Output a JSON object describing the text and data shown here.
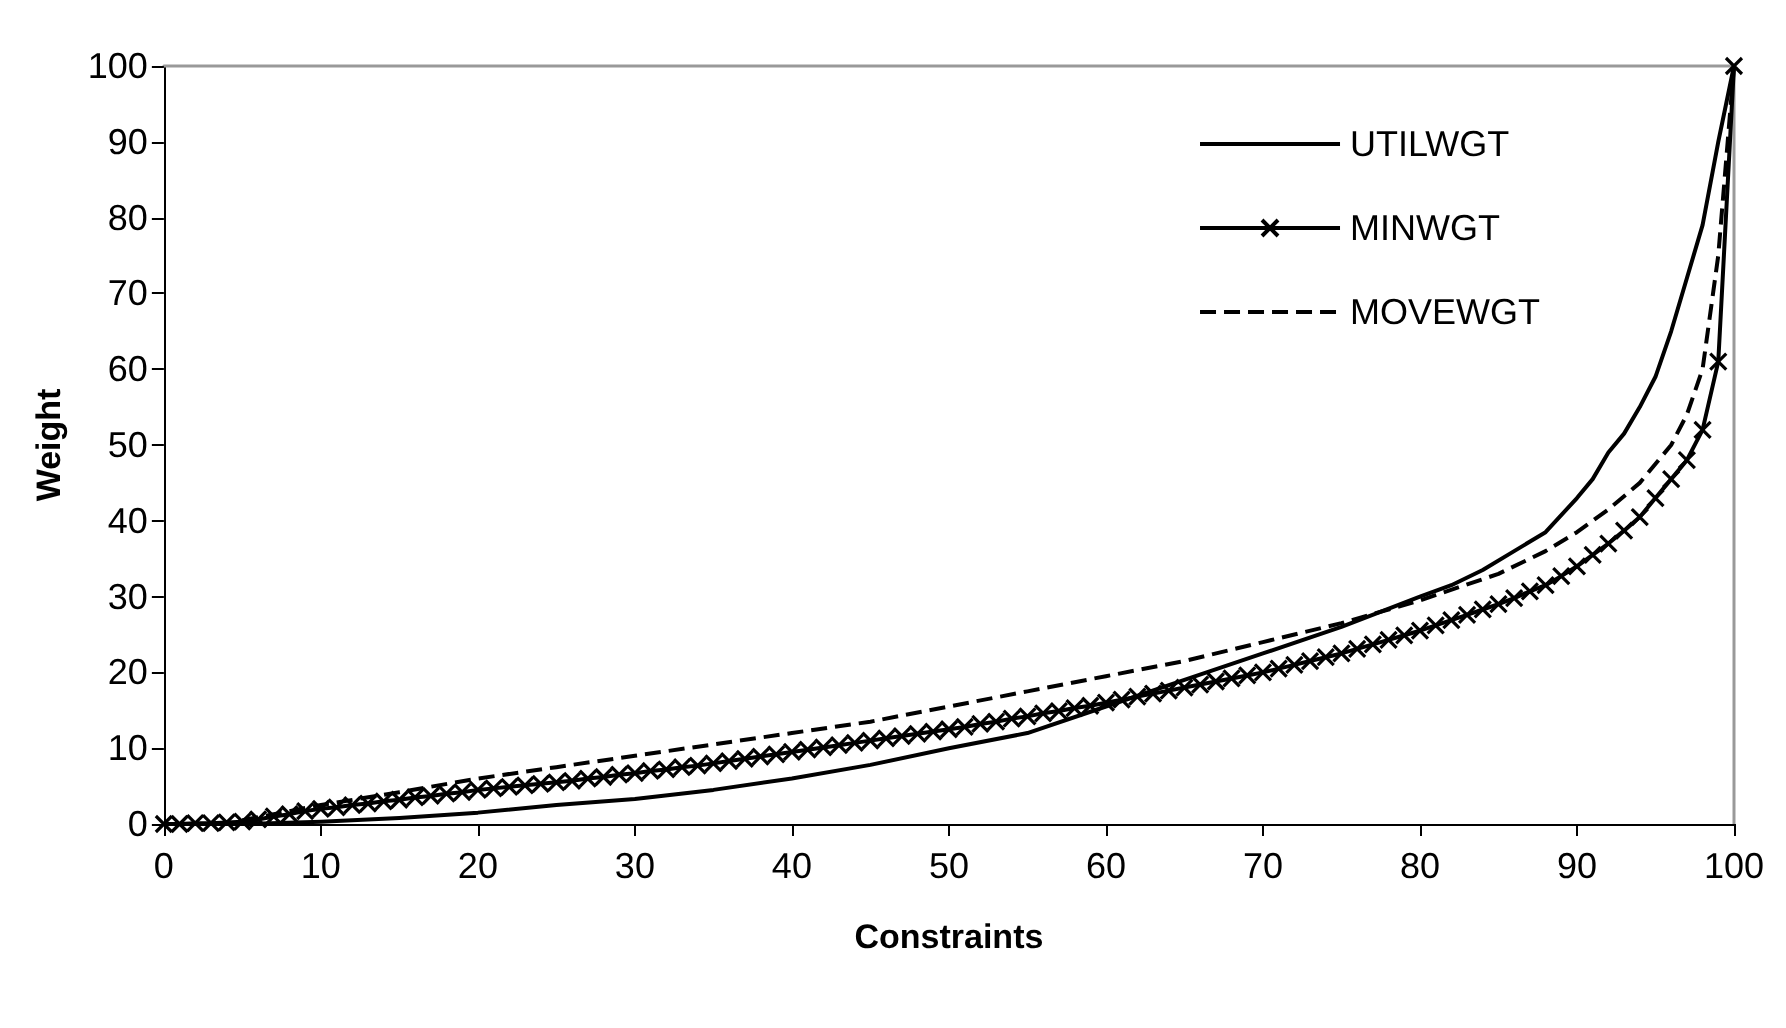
{
  "chart_data": {
    "type": "line",
    "xlabel": "Constraints",
    "ylabel": "Weight",
    "xlim": [
      0,
      100
    ],
    "xticks": [
      0,
      10,
      20,
      30,
      40,
      50,
      60,
      70,
      80,
      90,
      100
    ],
    "ylim": [
      0,
      100
    ],
    "yticks": [
      0,
      10,
      20,
      30,
      40,
      50,
      60,
      70,
      80,
      90,
      100
    ],
    "grid": false,
    "legend": "top right",
    "series": [
      {
        "name": "UTILWGT",
        "color": "#000000",
        "line_style": "solid",
        "marker": "none",
        "x": [
          5,
          10,
          15,
          20,
          25,
          30,
          35,
          40,
          45,
          50,
          55,
          60,
          65,
          70,
          75,
          80,
          82,
          84,
          86,
          88,
          90,
          91,
          92,
          93,
          94,
          95,
          96,
          97,
          98,
          99,
          100
        ],
        "values": [
          0,
          0.3,
          0.8,
          1.5,
          2.5,
          3.3,
          4.5,
          6,
          7.8,
          10,
          12,
          15.5,
          19,
          22.5,
          26,
          30,
          31.5,
          33.5,
          36,
          38.5,
          43,
          45.5,
          49,
          51.5,
          55,
          59,
          65,
          72,
          79,
          90,
          100
        ]
      },
      {
        "name": "MINWGT",
        "color": "#000000",
        "line_style": "solid",
        "marker": "cross",
        "x": [
          0,
          1,
          2,
          3,
          4,
          5,
          6,
          7,
          8,
          9,
          10,
          11,
          12,
          13,
          14,
          15,
          16,
          17,
          18,
          19,
          20,
          21,
          22,
          23,
          24,
          25,
          26,
          27,
          28,
          29,
          30,
          31,
          32,
          33,
          34,
          35,
          36,
          37,
          38,
          39,
          40,
          41,
          42,
          43,
          44,
          45,
          46,
          47,
          48,
          49,
          50,
          51,
          52,
          53,
          54,
          55,
          56,
          57,
          58,
          59,
          60,
          61,
          62,
          63,
          64,
          65,
          66,
          67,
          68,
          69,
          70,
          71,
          72,
          73,
          74,
          75,
          76,
          77,
          78,
          79,
          80,
          81,
          82,
          83,
          84,
          85,
          86,
          87,
          88,
          89,
          90,
          91,
          92,
          93,
          94,
          95,
          96,
          97,
          98,
          99,
          100
        ],
        "values": [
          0,
          0,
          0.1,
          0.1,
          0.2,
          0.3,
          0.6,
          1,
          1.3,
          1.7,
          2,
          2.2,
          2.5,
          2.7,
          3,
          3.2,
          3.5,
          3.7,
          4,
          4.2,
          4.5,
          4.7,
          4.9,
          5.1,
          5.3,
          5.5,
          5.7,
          6,
          6.2,
          6.5,
          6.7,
          7,
          7.2,
          7.5,
          7.7,
          8,
          8.3,
          8.6,
          8.9,
          9.2,
          9.5,
          9.8,
          10.1,
          10.4,
          10.7,
          11,
          11.3,
          11.6,
          11.9,
          12.2,
          12.5,
          12.8,
          13.2,
          13.5,
          13.9,
          14.2,
          14.6,
          14.9,
          15.3,
          15.6,
          16,
          16.4,
          16.8,
          17.2,
          17.6,
          18,
          18.4,
          18.8,
          19.2,
          19.6,
          20,
          20.5,
          21,
          21.5,
          22,
          22.5,
          23.1,
          23.7,
          24.3,
          24.9,
          25.5,
          26.2,
          26.9,
          27.6,
          28.3,
          29,
          29.8,
          30.7,
          31.5,
          32.7,
          34,
          35.5,
          37,
          38.7,
          40.5,
          43,
          45.5,
          48,
          52,
          61,
          100
        ]
      },
      {
        "name": "MOVEWGT",
        "color": "#000000",
        "line_style": "dashed",
        "marker": "none",
        "x": [
          5,
          10,
          15,
          20,
          25,
          30,
          35,
          40,
          45,
          50,
          55,
          60,
          65,
          70,
          75,
          80,
          85,
          88,
          90,
          92,
          94,
          96,
          97,
          98,
          99,
          100
        ],
        "values": [
          0.5,
          2.5,
          4.2,
          6,
          7.5,
          9,
          10.5,
          12,
          13.5,
          15.5,
          17.5,
          19.5,
          21.5,
          24,
          26.5,
          29.5,
          33,
          36,
          38.5,
          41.5,
          45,
          50,
          54,
          60,
          75,
          100
        ]
      }
    ]
  }
}
